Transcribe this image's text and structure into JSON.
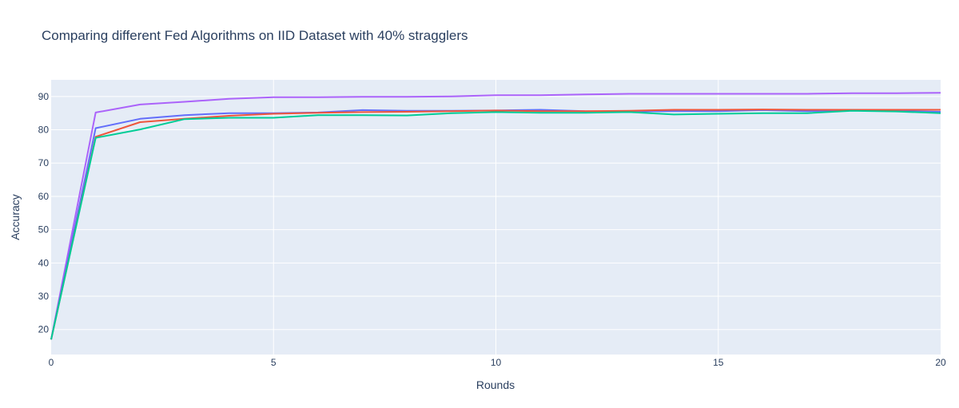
{
  "chart_data": {
    "type": "line",
    "title": "Comparing different Fed Algorithms on IID Dataset with 40% stragglers",
    "xlabel": "Rounds",
    "ylabel": "Accuracy",
    "xlim": [
      0,
      20
    ],
    "ylim": [
      12.5,
      95
    ],
    "x_ticks": [
      0,
      5,
      10,
      15,
      20
    ],
    "y_ticks": [
      20,
      30,
      40,
      50,
      60,
      70,
      80,
      90
    ],
    "grid": true,
    "legend": "none",
    "x": [
      0,
      1,
      2,
      3,
      4,
      5,
      6,
      7,
      8,
      9,
      10,
      11,
      12,
      13,
      14,
      15,
      16,
      17,
      18,
      19,
      20
    ],
    "series": [
      {
        "color": "#ab63fa",
        "values": [
          17,
          85.2,
          87.6,
          88.4,
          89.3,
          89.8,
          89.8,
          89.9,
          89.9,
          90.0,
          90.4,
          90.4,
          90.6,
          90.8,
          90.8,
          90.8,
          90.8,
          90.8,
          91.0,
          91.0,
          91.1
        ]
      },
      {
        "color": "#636efa",
        "values": [
          17,
          80.5,
          83.3,
          84.4,
          85.0,
          85.0,
          85.2,
          85.9,
          85.7,
          85.7,
          85.8,
          86.0,
          85.6,
          85.5,
          85.6,
          85.6,
          85.9,
          85.6,
          85.8,
          85.6,
          85.4
        ]
      },
      {
        "color": "#ef553b",
        "values": [
          17,
          77.9,
          82.3,
          83.3,
          84.2,
          84.8,
          85.1,
          85.3,
          85.4,
          85.6,
          85.8,
          85.6,
          85.6,
          85.7,
          86.0,
          86.0,
          86.1,
          86.0,
          86.0,
          86.0,
          86.0
        ]
      },
      {
        "color": "#00cc96",
        "values": [
          17,
          77.6,
          80.1,
          83.2,
          83.6,
          83.6,
          84.4,
          84.4,
          84.3,
          85.0,
          85.3,
          85.1,
          85.1,
          85.3,
          84.6,
          84.8,
          85.0,
          85.0,
          85.7,
          85.5,
          85.0
        ]
      }
    ]
  }
}
